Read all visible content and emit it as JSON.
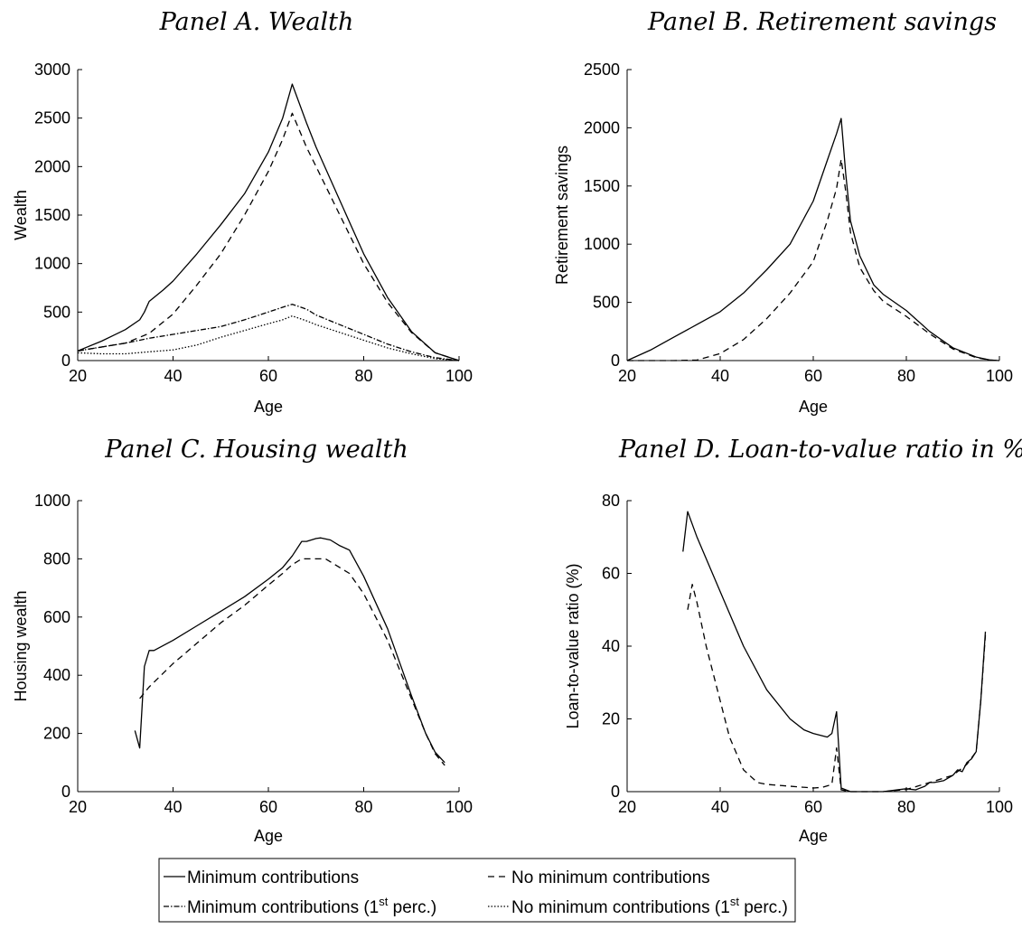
{
  "chart_data": [
    {
      "type": "line",
      "title": "Panel A. Wealth",
      "xlabel": "Age",
      "ylabel": "Wealth",
      "xlim": [
        20,
        100
      ],
      "ylim": [
        0,
        3000
      ],
      "xticks": [
        20,
        40,
        60,
        80,
        100
      ],
      "yticks": [
        0,
        500,
        1000,
        1500,
        2000,
        2500,
        3000
      ],
      "series": [
        {
          "name": "Minimum contributions",
          "style": "solid",
          "x": [
            20,
            25,
            30,
            33,
            34,
            35,
            38,
            40,
            45,
            50,
            55,
            60,
            63,
            65,
            68,
            70,
            75,
            80,
            85,
            90,
            95,
            100
          ],
          "y": [
            100,
            200,
            320,
            420,
            500,
            610,
            730,
            820,
            1100,
            1400,
            1720,
            2150,
            2500,
            2850,
            2450,
            2200,
            1650,
            1100,
            650,
            300,
            80,
            0
          ]
        },
        {
          "name": "No minimum contributions",
          "style": "dashed",
          "x": [
            20,
            25,
            30,
            35,
            40,
            45,
            50,
            55,
            60,
            63,
            65,
            68,
            70,
            75,
            80,
            85,
            90,
            95,
            100
          ],
          "y": [
            100,
            140,
            180,
            280,
            480,
            780,
            1100,
            1500,
            1950,
            2280,
            2550,
            2200,
            2000,
            1500,
            1000,
            600,
            290,
            80,
            0
          ]
        },
        {
          "name": "Minimum contributions (1st perc.)",
          "style": "dashdot",
          "x": [
            20,
            25,
            30,
            35,
            40,
            45,
            50,
            55,
            60,
            63,
            65,
            68,
            70,
            75,
            80,
            85,
            90,
            95,
            100
          ],
          "y": [
            100,
            140,
            180,
            230,
            270,
            310,
            350,
            420,
            500,
            550,
            580,
            530,
            470,
            370,
            270,
            170,
            90,
            30,
            0
          ]
        },
        {
          "name": "No minimum contributions (1st perc.)",
          "style": "dotted",
          "x": [
            20,
            25,
            30,
            35,
            40,
            45,
            50,
            55,
            60,
            63,
            65,
            68,
            70,
            75,
            80,
            85,
            90,
            95,
            100
          ],
          "y": [
            80,
            70,
            70,
            90,
            110,
            160,
            240,
            310,
            380,
            420,
            460,
            410,
            370,
            290,
            210,
            130,
            70,
            20,
            0
          ]
        }
      ]
    },
    {
      "type": "line",
      "title": "Panel B. Retirement savings",
      "xlabel": "Age",
      "ylabel": "Retirement savings",
      "xlim": [
        20,
        100
      ],
      "ylim": [
        0,
        2500
      ],
      "xticks": [
        20,
        40,
        60,
        80,
        100
      ],
      "yticks": [
        0,
        500,
        1000,
        1500,
        2000,
        2500
      ],
      "series": [
        {
          "name": "Minimum contributions",
          "style": "solid",
          "x": [
            20,
            25,
            30,
            35,
            40,
            45,
            50,
            55,
            60,
            63,
            65,
            66,
            67,
            68,
            70,
            73,
            75,
            80,
            85,
            90,
            95,
            98,
            100
          ],
          "y": [
            0,
            90,
            200,
            310,
            420,
            580,
            780,
            1000,
            1370,
            1720,
            1950,
            2080,
            1600,
            1200,
            900,
            650,
            570,
            430,
            250,
            110,
            30,
            5,
            0
          ]
        },
        {
          "name": "No minimum contributions",
          "style": "dashed",
          "x": [
            20,
            30,
            35,
            40,
            45,
            50,
            55,
            60,
            63,
            65,
            66,
            67,
            68,
            70,
            73,
            75,
            80,
            85,
            90,
            95,
            98,
            100
          ],
          "y": [
            0,
            0,
            5,
            60,
            180,
            360,
            580,
            850,
            1200,
            1480,
            1730,
            1450,
            1100,
            800,
            600,
            510,
            380,
            230,
            100,
            25,
            5,
            0
          ]
        }
      ]
    },
    {
      "type": "line",
      "title": "Panel C. Housing wealth",
      "xlabel": "Age",
      "ylabel": "Housing wealth",
      "xlim": [
        20,
        100
      ],
      "ylim": [
        0,
        1000
      ],
      "xticks": [
        20,
        40,
        60,
        80,
        100
      ],
      "yticks": [
        0,
        200,
        400,
        600,
        800,
        1000
      ],
      "series": [
        {
          "name": "Minimum contributions",
          "style": "solid",
          "x": [
            32,
            33,
            34,
            35,
            36,
            40,
            45,
            50,
            55,
            60,
            63,
            65,
            67,
            68,
            70,
            71,
            73,
            75,
            77,
            80,
            85,
            90,
            93,
            95,
            97
          ],
          "y": [
            210,
            150,
            430,
            485,
            485,
            520,
            570,
            620,
            670,
            730,
            770,
            810,
            860,
            860,
            870,
            872,
            865,
            845,
            830,
            740,
            560,
            330,
            200,
            135,
            100
          ]
        },
        {
          "name": "No minimum contributions",
          "style": "dashed",
          "x": [
            33,
            35,
            40,
            45,
            50,
            55,
            60,
            63,
            65,
            67,
            70,
            72,
            75,
            77,
            80,
            85,
            90,
            93,
            95,
            97
          ],
          "y": [
            320,
            360,
            440,
            510,
            580,
            640,
            710,
            750,
            780,
            800,
            800,
            800,
            770,
            750,
            680,
            520,
            320,
            200,
            130,
            90
          ]
        }
      ]
    },
    {
      "type": "line",
      "title": "Panel D. Loan-to-value ratio in %",
      "xlabel": "Age",
      "ylabel": "Loan-to-value ratio (%)",
      "xlim": [
        20,
        100
      ],
      "ylim": [
        0,
        80
      ],
      "xticks": [
        20,
        40,
        60,
        80,
        100
      ],
      "yticks": [
        0,
        20,
        40,
        60,
        80
      ],
      "series": [
        {
          "name": "Minimum contributions",
          "style": "solid",
          "x": [
            32,
            33,
            35,
            40,
            45,
            50,
            55,
            58,
            60,
            63,
            64,
            65,
            66,
            68,
            70,
            75,
            78,
            80,
            82,
            84,
            85,
            86,
            88,
            90,
            91,
            92,
            93,
            94,
            95,
            96,
            97
          ],
          "y": [
            66,
            77,
            70,
            55,
            40,
            28,
            20,
            17,
            16,
            15,
            16,
            22,
            1,
            0,
            0,
            0,
            0.5,
            0.8,
            0.5,
            1.5,
            2.5,
            2.5,
            3,
            4.5,
            6,
            5.5,
            8,
            9,
            11,
            25,
            44
          ]
        },
        {
          "name": "No minimum contributions",
          "style": "dashed",
          "x": [
            33,
            34,
            35,
            37,
            40,
            42,
            45,
            48,
            50,
            55,
            60,
            62,
            64,
            65,
            66,
            68,
            70,
            75,
            80,
            85,
            90,
            93,
            95,
            96,
            97
          ],
          "y": [
            50,
            57,
            52,
            40,
            25,
            15,
            6,
            2.5,
            2,
            1.5,
            1,
            1.2,
            2,
            12,
            0.5,
            0,
            0,
            0,
            0.6,
            2.5,
            4.5,
            7.5,
            11,
            25,
            43
          ]
        }
      ]
    }
  ],
  "legend": {
    "items": [
      {
        "label": "Minimum contributions",
        "style": "solid"
      },
      {
        "label": "No minimum contributions",
        "style": "dashed"
      },
      {
        "label": "Minimum contributions (1",
        "sup": "st",
        "suffix": " perc.)",
        "style": "dashdot"
      },
      {
        "label": "No minimum contributions (1",
        "sup": "st",
        "suffix": " perc.)",
        "style": "dotted"
      }
    ]
  }
}
